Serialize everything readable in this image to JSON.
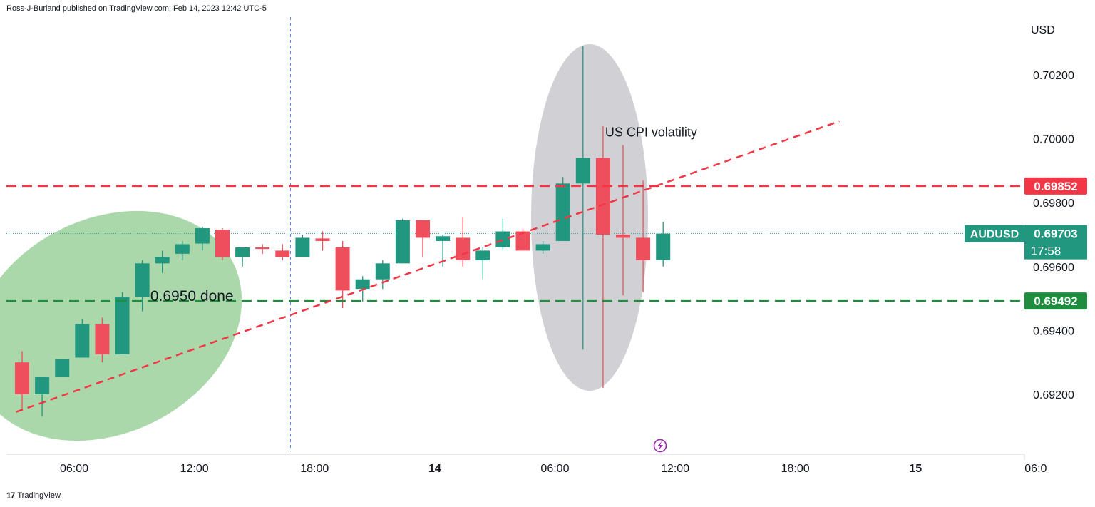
{
  "header": {
    "text": "Ross-J-Burland published on TradingView.com, Feb 14, 2023 12:42 UTC-5"
  },
  "footer": {
    "logo": "17",
    "brand": "TradingView"
  },
  "colors": {
    "up": "#26a69a",
    "upBody": "#22977f",
    "down": "#f23645",
    "downBody": "#ef4f5c",
    "red_level": "#f23645",
    "green_level": "#1e8e3e",
    "ellipse_green": "#a5d6a7",
    "ellipse_grey": "#c9c9ce"
  },
  "chart_data": {
    "type": "candlestick",
    "symbol": "AUDUSD",
    "currency": "USD",
    "ylim": [
      0.6906,
      0.703
    ],
    "y_ticks": [
      "0.70200",
      "0.70000",
      "0.69800",
      "0.69600",
      "0.69400",
      "0.69200"
    ],
    "x_ticks": [
      {
        "label": "06:00",
        "bold": false,
        "index": 2.6
      },
      {
        "label": "12:00",
        "bold": false,
        "index": 8.6
      },
      {
        "label": "18:00",
        "bold": false,
        "index": 14.6
      },
      {
        "label": "14",
        "bold": true,
        "index": 20.6
      },
      {
        "label": "06:00",
        "bold": false,
        "index": 26.6
      },
      {
        "label": "12:00",
        "bold": false,
        "index": 32.6
      },
      {
        "label": "18:00",
        "bold": false,
        "index": 38.6
      },
      {
        "label": "15",
        "bold": true,
        "index": 44.6
      },
      {
        "label": "06:0",
        "bold": false,
        "index": 50.6
      }
    ],
    "candles": [
      [
        0.693,
        0.69335,
        0.69155,
        0.692
      ],
      [
        0.692,
        0.69255,
        0.6913,
        0.69255
      ],
      [
        0.69255,
        0.6931,
        0.69255,
        0.6931
      ],
      [
        0.69315,
        0.69435,
        0.69315,
        0.6942
      ],
      [
        0.6942,
        0.6944,
        0.693,
        0.69325
      ],
      [
        0.69325,
        0.6952,
        0.69325,
        0.69505
      ],
      [
        0.69505,
        0.6962,
        0.6946,
        0.6961
      ],
      [
        0.6961,
        0.6965,
        0.6958,
        0.6963
      ],
      [
        0.6964,
        0.6968,
        0.6962,
        0.6967
      ],
      [
        0.69672,
        0.69725,
        0.6965,
        0.6972
      ],
      [
        0.69715,
        0.6972,
        0.6962,
        0.6963
      ],
      [
        0.6963,
        0.6965,
        0.696,
        0.6966
      ],
      [
        0.6966,
        0.6967,
        0.6964,
        0.69655
      ],
      [
        0.6965,
        0.6967,
        0.6962,
        0.6963
      ],
      [
        0.6963,
        0.697,
        0.6963,
        0.6969
      ],
      [
        0.69688,
        0.6971,
        0.6965,
        0.6968
      ],
      [
        0.6966,
        0.6968,
        0.6947,
        0.69525
      ],
      [
        0.6953,
        0.6957,
        0.6949,
        0.6956
      ],
      [
        0.6956,
        0.6962,
        0.6953,
        0.6961
      ],
      [
        0.6961,
        0.6975,
        0.6961,
        0.69745
      ],
      [
        0.69745,
        0.69745,
        0.6963,
        0.6969
      ],
      [
        0.6968,
        0.697,
        0.696,
        0.69695
      ],
      [
        0.6969,
        0.69755,
        0.696,
        0.6962
      ],
      [
        0.6962,
        0.6966,
        0.6956,
        0.6965
      ],
      [
        0.6966,
        0.6975,
        0.6965,
        0.6971
      ],
      [
        0.6971,
        0.6972,
        0.6965,
        0.6965
      ],
      [
        0.6965,
        0.6968,
        0.6964,
        0.6967
      ],
      [
        0.6968,
        0.6988,
        0.6968,
        0.6986
      ],
      [
        0.6986,
        0.7029,
        0.6934,
        0.6994
      ],
      [
        0.6994,
        0.7004,
        0.6922,
        0.697
      ],
      [
        0.697,
        0.6998,
        0.6951,
        0.6969
      ],
      [
        0.6969,
        0.6987,
        0.6952,
        0.6962
      ],
      [
        0.6962,
        0.6974,
        0.696,
        0.69703
      ]
    ],
    "levels": [
      {
        "name": "resistance",
        "value": 0.69852,
        "label": "0.69852",
        "color": "#f23645"
      },
      {
        "name": "support",
        "value": 0.69492,
        "label": "0.69492",
        "color": "#1e8e3e"
      }
    ],
    "trendline": {
      "from": [
        -0.3,
        0.69145
      ],
      "to": [
        40.8,
        0.70055
      ]
    },
    "vertical_line_index": 13.4,
    "current_price": {
      "value": 0.69703,
      "label": "0.69703",
      "symbol_label": "AUDUSD",
      "countdown": "17:58"
    },
    "annotations": [
      {
        "text": "0.6950 done",
        "index": 6.4,
        "value": 0.69508
      },
      {
        "text": "US CPI volatility",
        "index": 29.0,
        "value": 0.7002
      }
    ],
    "ellipses": [
      {
        "name": "green-highlight",
        "color": "#a5d6a7"
      },
      {
        "name": "grey-highlight",
        "color": "#c9c9ce"
      }
    ]
  }
}
